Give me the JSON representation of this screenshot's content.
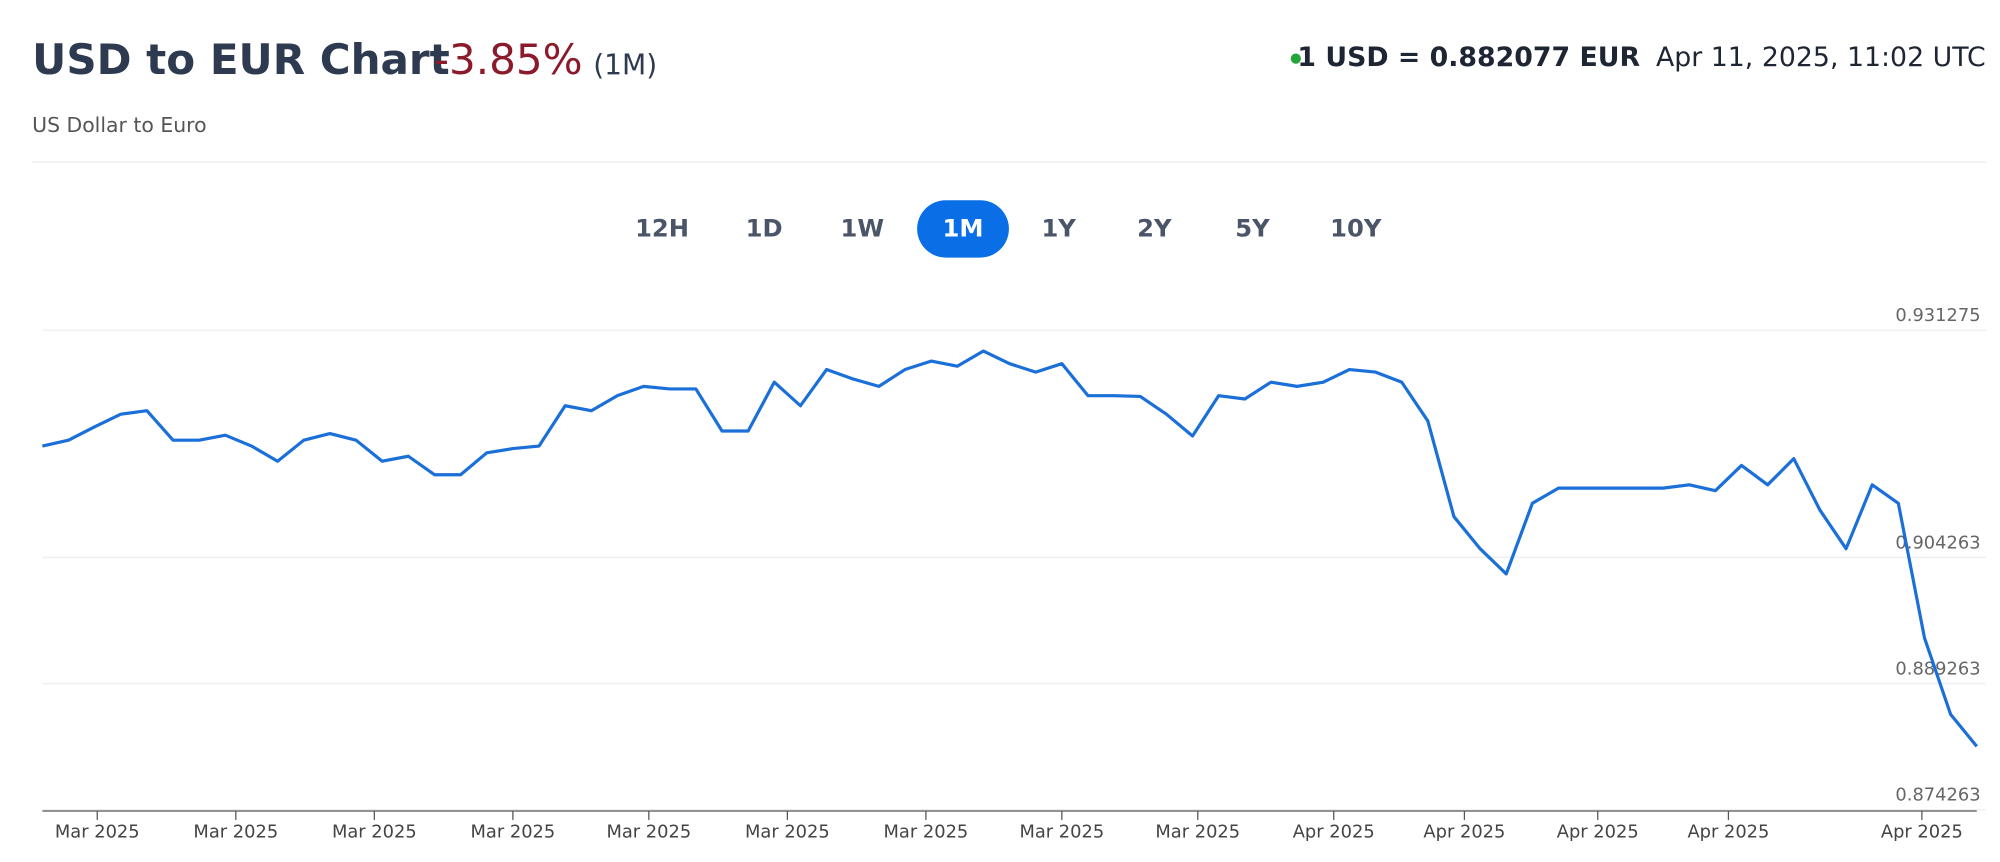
{
  "header": {
    "title": "USD to EUR Chart",
    "change": "-3.85%",
    "period": "(1M)",
    "subtitle": "US Dollar to Euro",
    "rate": "1 USD = 0.882077 EUR",
    "timestamp": "Apr 11, 2025, 11:02 UTC"
  },
  "ranges": {
    "buttons": [
      "12H",
      "1D",
      "1W",
      "1M",
      "1Y",
      "2Y",
      "5Y",
      "10Y"
    ],
    "active_index": 3
  },
  "chart_data": {
    "type": "line",
    "series": [
      {
        "name": "USD/EUR",
        "color": "#1a6fd8",
        "values": [
          0.9175,
          0.9182,
          0.9198,
          0.9213,
          0.9217,
          0.9182,
          0.9182,
          0.9188,
          0.9175,
          0.9157,
          0.9182,
          0.919,
          0.9182,
          0.9157,
          0.9163,
          0.9141,
          0.9141,
          0.9167,
          0.9172,
          0.9175,
          0.9223,
          0.9217,
          0.9235,
          0.9246,
          0.9243,
          0.9243,
          0.9193,
          0.9193,
          0.9251,
          0.9223,
          0.9266,
          0.9255,
          0.9246,
          0.9266,
          0.9276,
          0.927,
          0.9288,
          0.9273,
          0.9263,
          0.9273,
          0.9235,
          0.9235,
          0.9234,
          0.9213,
          0.9187,
          0.9235,
          0.9231,
          0.9251,
          0.9246,
          0.9251,
          0.9266,
          0.9263,
          0.9251,
          0.9205,
          0.9091,
          0.9053,
          0.9023,
          0.9107,
          0.9125,
          0.9125,
          0.9125,
          0.9125,
          0.9125,
          0.9129,
          0.9122,
          0.9152,
          0.9129,
          0.916,
          0.9099,
          0.9053,
          0.9129,
          0.9107,
          0.8947,
          0.8856,
          0.8818
        ]
      }
    ],
    "ylim": [
      0.874263,
      0.931275
    ],
    "yticks": [
      0.874263,
      0.889263,
      0.904263,
      0.931275
    ],
    "xticks": [
      {
        "value": 2.1,
        "label": "Mar 2025"
      },
      {
        "value": 7.4,
        "label": "Mar 2025"
      },
      {
        "value": 12.7,
        "label": "Mar 2025"
      },
      {
        "value": 18.0,
        "label": "Mar 2025"
      },
      {
        "value": 23.2,
        "label": "Mar 2025"
      },
      {
        "value": 28.5,
        "label": "Mar 2025"
      },
      {
        "value": 33.8,
        "label": "Mar 2025"
      },
      {
        "value": 39.0,
        "label": "Mar 2025"
      },
      {
        "value": 44.2,
        "label": "Mar 2025"
      },
      {
        "value": 49.4,
        "label": "Apr 2025"
      },
      {
        "value": 54.4,
        "label": "Apr 2025"
      },
      {
        "value": 59.5,
        "label": "Apr 2025"
      },
      {
        "value": 64.5,
        "label": "Apr 2025"
      },
      {
        "value": 71.9,
        "label": "Apr 2025"
      }
    ],
    "grid": true
  }
}
